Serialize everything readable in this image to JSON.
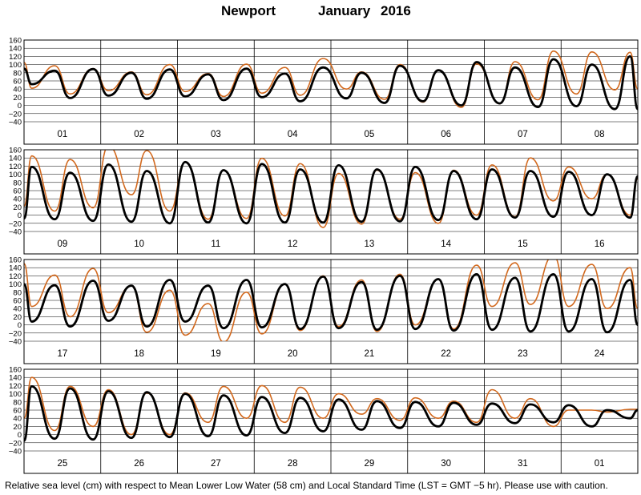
{
  "header": {
    "station": "Newport",
    "month": "January",
    "year": "2016"
  },
  "footnote": "Relative sea level (cm) with respect to Mean Lower Low Water (58 cm) and Local Standard Time (LST = GMT −5 hr). Please use with caution.",
  "colors": {
    "predicted": "#000000",
    "observed": "#d2691e",
    "grid": "#000000",
    "background": "#ffffff"
  },
  "chart_data": {
    "type": "line",
    "title": "Newport January 2016",
    "ylabel": "",
    "xlabel": "",
    "ylim": [
      -40,
      160
    ],
    "yticks": [
      -40,
      -20,
      0,
      20,
      40,
      60,
      80,
      100,
      120,
      140,
      160
    ],
    "grid": true,
    "x_unit": "day of month (LST)",
    "series_styles": [
      {
        "key": "predicted",
        "color": "#000000",
        "style": "thick"
      },
      {
        "key": "observed",
        "color": "#d2691e",
        "style": "thin"
      }
    ],
    "panels": [
      {
        "day_labels": [
          "01",
          "02",
          "03",
          "04",
          "05",
          "06",
          "07",
          "08"
        ],
        "x_range": [
          1,
          9
        ],
        "predicted": {
          "x": [
            1.0,
            1.1,
            1.4,
            1.6,
            1.9,
            2.1,
            2.4,
            2.6,
            2.9,
            3.1,
            3.4,
            3.6,
            3.9,
            4.1,
            4.4,
            4.6,
            4.9,
            5.2,
            5.4,
            5.7,
            5.9,
            6.2,
            6.4,
            6.7,
            6.9,
            7.2,
            7.4,
            7.7,
            7.9,
            8.2,
            8.4,
            8.7,
            8.9,
            9.0
          ],
          "y": [
            90,
            52,
            85,
            18,
            89,
            24,
            80,
            16,
            88,
            22,
            76,
            13,
            90,
            20,
            78,
            10,
            93,
            17,
            80,
            6,
            97,
            10,
            86,
            0,
            106,
            5,
            93,
            -4,
            113,
            -2,
            100,
            -9,
            120,
            -9
          ]
        },
        "observed": {
          "x": [
            1.0,
            1.1,
            1.4,
            1.6,
            1.9,
            2.1,
            2.4,
            2.6,
            2.9,
            3.1,
            3.4,
            3.6,
            3.9,
            4.1,
            4.4,
            4.6,
            4.9,
            5.2,
            5.4,
            5.7,
            5.9,
            6.2,
            6.4,
            6.7,
            6.9,
            7.2,
            7.4,
            7.7,
            7.9,
            8.2,
            8.4,
            8.7,
            8.9,
            9.0
          ],
          "y": [
            105,
            42,
            97,
            28,
            90,
            36,
            82,
            26,
            100,
            34,
            78,
            22,
            101,
            30,
            93,
            25,
            115,
            40,
            82,
            15,
            100,
            8,
            87,
            -5,
            102,
            4,
            107,
            14,
            133,
            28,
            131,
            38,
            130,
            40
          ]
        }
      },
      {
        "day_labels": [
          "09",
          "10",
          "11",
          "12",
          "13",
          "14",
          "15",
          "16"
        ],
        "x_range": [
          9,
          17
        ],
        "predicted": {
          "x": [
            9.0,
            9.1,
            9.4,
            9.6,
            9.9,
            10.1,
            10.4,
            10.6,
            10.9,
            11.1,
            11.4,
            11.6,
            11.9,
            12.1,
            12.4,
            12.6,
            12.9,
            13.1,
            13.4,
            13.6,
            13.9,
            14.1,
            14.4,
            14.6,
            14.9,
            15.1,
            15.4,
            15.6,
            15.9,
            16.1,
            16.4,
            16.6,
            16.9,
            17.0
          ],
          "y": [
            -8,
            118,
            -10,
            104,
            -14,
            124,
            -16,
            108,
            -20,
            130,
            -18,
            110,
            -20,
            125,
            -18,
            112,
            -18,
            122,
            -16,
            112,
            -15,
            118,
            -12,
            108,
            -10,
            112,
            -6,
            108,
            -4,
            106,
            0,
            100,
            -6,
            95
          ]
        },
        "observed": {
          "x": [
            9.0,
            9.1,
            9.4,
            9.6,
            9.9,
            10.1,
            10.4,
            10.6,
            10.9,
            11.1,
            11.4,
            11.6,
            11.9,
            12.1,
            12.4,
            12.6,
            12.9,
            13.1,
            13.4,
            13.6,
            13.9,
            14.1,
            14.4,
            14.6,
            14.9,
            15.1,
            15.4,
            15.6,
            15.9,
            16.1,
            16.4,
            16.6,
            16.9,
            17.0
          ],
          "y": [
            22,
            145,
            10,
            136,
            18,
            170,
            50,
            158,
            10,
            130,
            -10,
            110,
            -8,
            139,
            -2,
            126,
            -30,
            102,
            -22,
            110,
            -10,
            104,
            -20,
            110,
            0,
            123,
            -4,
            140,
            35,
            118,
            40,
            100,
            0,
            90
          ]
        }
      },
      {
        "day_labels": [
          "17",
          "18",
          "19",
          "20",
          "21",
          "22",
          "23",
          "24"
        ],
        "x_range": [
          17,
          25
        ],
        "predicted": {
          "x": [
            17.0,
            17.1,
            17.4,
            17.6,
            17.9,
            18.1,
            18.4,
            18.6,
            18.9,
            19.1,
            19.4,
            19.6,
            19.9,
            20.1,
            20.4,
            20.6,
            20.9,
            21.1,
            21.4,
            21.6,
            21.9,
            22.1,
            22.4,
            22.6,
            22.9,
            23.1,
            23.4,
            23.6,
            23.9,
            24.1,
            24.4,
            24.6,
            24.9,
            25.0
          ],
          "y": [
            100,
            8,
            97,
            -4,
            108,
            10,
            96,
            -4,
            110,
            8,
            96,
            -8,
            110,
            -6,
            100,
            -10,
            118,
            -8,
            105,
            -12,
            120,
            -10,
            112,
            -14,
            124,
            -12,
            115,
            -16,
            124,
            -16,
            112,
            -18,
            110,
            0
          ]
        },
        "observed": {
          "x": [
            17.0,
            17.1,
            17.4,
            17.6,
            17.9,
            18.1,
            18.4,
            18.6,
            18.9,
            19.1,
            19.4,
            19.6,
            19.9,
            20.1,
            20.4,
            20.6,
            20.9,
            21.1,
            21.4,
            21.6,
            21.9,
            22.1,
            22.4,
            22.6,
            22.9,
            23.1,
            23.4,
            23.6,
            23.9,
            24.1,
            24.4,
            24.6,
            24.9,
            25.0
          ],
          "y": [
            150,
            45,
            122,
            20,
            138,
            30,
            95,
            -18,
            85,
            -25,
            52,
            -42,
            80,
            -22,
            100,
            -14,
            120,
            -4,
            110,
            -16,
            124,
            0,
            112,
            -10,
            146,
            45,
            152,
            50,
            170,
            45,
            148,
            40,
            140,
            40
          ]
        }
      },
      {
        "day_labels": [
          "25",
          "26",
          "27",
          "28",
          "29",
          "30",
          "31",
          "01"
        ],
        "x_range": [
          25,
          33
        ],
        "predicted": {
          "x": [
            25.0,
            25.1,
            25.4,
            25.6,
            25.9,
            26.1,
            26.4,
            26.6,
            26.9,
            27.1,
            27.4,
            27.6,
            27.9,
            28.1,
            28.4,
            28.6,
            28.9,
            29.1,
            29.4,
            29.6,
            29.9,
            30.1,
            30.4,
            30.6,
            30.9,
            31.1,
            31.4,
            31.6,
            31.9,
            32.1,
            32.4,
            32.6,
            32.9,
            33.0
          ],
          "y": [
            -15,
            118,
            -10,
            113,
            -12,
            106,
            -8,
            104,
            -6,
            100,
            -4,
            96,
            -2,
            92,
            4,
            90,
            8,
            86,
            12,
            82,
            16,
            80,
            20,
            78,
            24,
            76,
            28,
            74,
            30,
            72,
            20,
            60,
            40,
            60
          ]
        },
        "observed": {
          "x": [
            25.0,
            25.1,
            25.4,
            25.6,
            25.9,
            26.1,
            26.4,
            26.6,
            26.9,
            27.1,
            27.4,
            27.6,
            27.9,
            28.1,
            28.4,
            28.6,
            28.9,
            29.1,
            29.4,
            29.6,
            29.9,
            30.1,
            30.4,
            30.6,
            30.9,
            31.1,
            31.4,
            31.6,
            31.9,
            32.1,
            32.4,
            32.6,
            32.9,
            33.0
          ],
          "y": [
            40,
            140,
            10,
            118,
            20,
            110,
            0,
            102,
            0,
            102,
            30,
            118,
            40,
            120,
            30,
            116,
            40,
            100,
            50,
            88,
            35,
            90,
            40,
            82,
            30,
            110,
            40,
            88,
            20,
            60,
            60,
            55,
            62,
            62
          ]
        }
      }
    ]
  }
}
